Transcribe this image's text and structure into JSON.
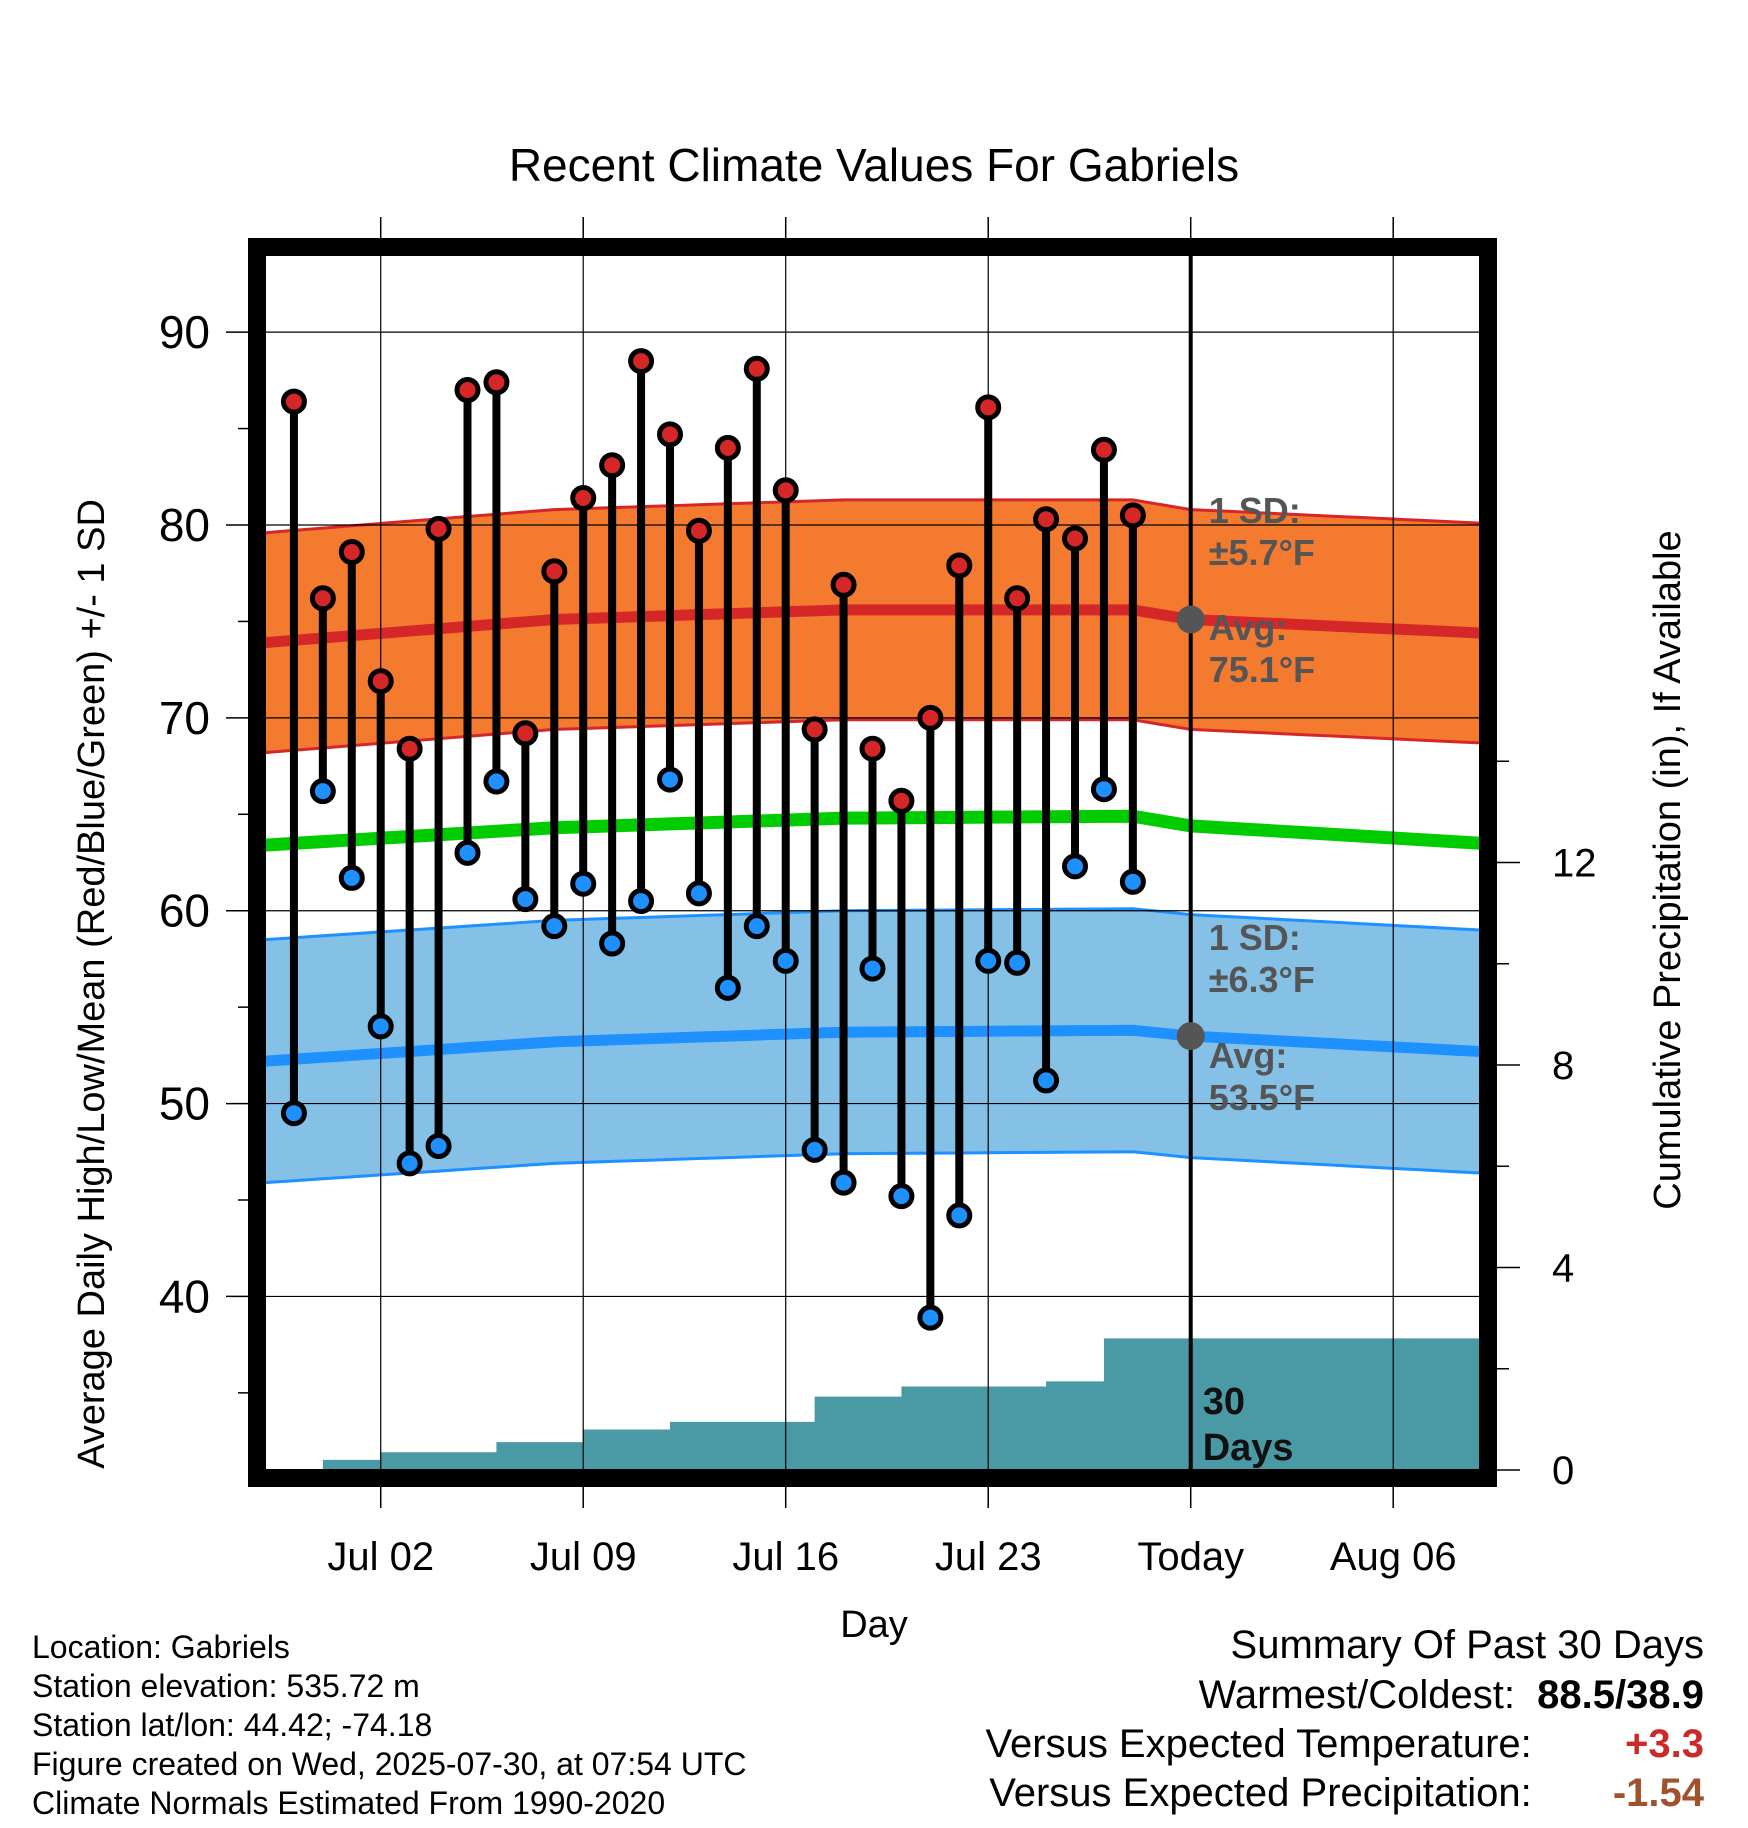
{
  "chart_data": {
    "type": "line",
    "title": "Recent Climate Values For Gabriels",
    "xlabel": "Day",
    "ylabel": "Average Daily High/Low/Mean (Red/Blue/Green) +/- 1 SD",
    "y2label": "Cumulative Precipitation (in), If Available",
    "ylim": [
      31,
      94
    ],
    "y2lim": [
      0,
      24
    ],
    "x_tick_labels": [
      "Jul 02",
      "Jul 09",
      "Jul 16",
      "Jul 23",
      "Today",
      "Aug 06"
    ],
    "x_tick_dates": [
      "2025-07-02",
      "2025-07-09",
      "2025-07-16",
      "2025-07-23",
      "2025-07-30",
      "2025-08-06"
    ],
    "x_range": [
      "2025-06-28",
      "2025-08-09"
    ],
    "y_ticks": [
      40,
      50,
      60,
      70,
      80,
      90
    ],
    "y2_ticks": [
      0,
      4,
      8,
      12
    ],
    "grid": true,
    "days": [
      "2025-06-29",
      "2025-06-30",
      "2025-07-01",
      "2025-07-02",
      "2025-07-03",
      "2025-07-04",
      "2025-07-05",
      "2025-07-06",
      "2025-07-07",
      "2025-07-08",
      "2025-07-09",
      "2025-07-10",
      "2025-07-11",
      "2025-07-12",
      "2025-07-13",
      "2025-07-14",
      "2025-07-15",
      "2025-07-16",
      "2025-07-17",
      "2025-07-18",
      "2025-07-19",
      "2025-07-20",
      "2025-07-21",
      "2025-07-22",
      "2025-07-23",
      "2025-07-24",
      "2025-07-25",
      "2025-07-26",
      "2025-07-27",
      "2025-07-28",
      "2025-07-29"
    ],
    "series": [
      {
        "name": "High",
        "color": "#d62728",
        "values": [
          86.4,
          76.2,
          78.6,
          71.9,
          68.4,
          79.8,
          87.0,
          87.4,
          69.2,
          77.6,
          81.4,
          83.1,
          88.5,
          84.7,
          79.7,
          84.0,
          88.1,
          81.8,
          69.4,
          76.9,
          68.4,
          65.7,
          70.0,
          77.9,
          86.1,
          76.2,
          80.3,
          79.3,
          83.9,
          80.5,
          null
        ]
      },
      {
        "name": "Low",
        "color": "#1e90ff",
        "values": [
          49.5,
          66.2,
          61.7,
          54.0,
          46.9,
          47.8,
          63.0,
          66.7,
          60.6,
          59.2,
          61.4,
          58.3,
          60.5,
          66.8,
          60.9,
          56.0,
          59.2,
          57.4,
          47.6,
          45.9,
          57.0,
          45.2,
          38.9,
          44.2,
          57.4,
          57.3,
          51.2,
          62.3,
          66.3,
          61.5,
          null
        ]
      }
    ],
    "normals": {
      "high_avg": {
        "values": [
          73.9,
          75.1,
          75.6,
          75.6,
          75.1,
          74.4
        ],
        "label": "Avg:\n75.1°F"
      },
      "high_sd": {
        "value": 5.7,
        "label": "1 SD:\n±5.7°F"
      },
      "mean_avg": {
        "values": [
          63.4,
          64.3,
          64.8,
          64.9,
          64.4,
          63.5
        ]
      },
      "low_avg": {
        "values": [
          52.2,
          53.2,
          53.7,
          53.8,
          53.5,
          52.7
        ],
        "label": "Avg:\n53.5°F"
      },
      "low_sd": {
        "value": 6.3,
        "label": "1 SD:\n±6.3°F"
      },
      "normal_dates": [
        "2025-06-28",
        "2025-07-08",
        "2025-07-18",
        "2025-07-28",
        "2025-07-30",
        "2025-08-09"
      ]
    },
    "precipitation": {
      "color": "#4a9aa5",
      "steps": [
        [
          "2025-06-29",
          0.0
        ],
        [
          "2025-06-30",
          0.2
        ],
        [
          "2025-07-02",
          0.35
        ],
        [
          "2025-07-06",
          0.55
        ],
        [
          "2025-07-09",
          0.8
        ],
        [
          "2025-07-12",
          0.95
        ],
        [
          "2025-07-17",
          1.45
        ],
        [
          "2025-07-20",
          1.65
        ],
        [
          "2025-07-25",
          1.75
        ],
        [
          "2025-07-27",
          2.6
        ],
        [
          "2025-08-09",
          2.6
        ]
      ]
    },
    "today_marker": {
      "label": "30\nDays",
      "date": "2025-07-30"
    }
  },
  "footer": {
    "location": "Location: Gabriels",
    "elevation": "Station elevation: 535.72 m",
    "latlon": "Station lat/lon: 44.42; -74.18",
    "created": "Figure created on Wed, 2025-07-30, at 07:54 UTC",
    "normals": "Climate Normals Estimated From 1990-2020"
  },
  "summary": {
    "title": "Summary Of Past 30 Days",
    "warm_cold_label": "Warmest/Coldest:",
    "warm_cold_value": "88.5/38.9",
    "temp_label": "Versus Expected Temperature:",
    "temp_value": "+3.3",
    "temp_color": "#cc2a2a",
    "precip_label": "Versus Expected Precipitation:",
    "precip_value": "-1.54",
    "precip_color": "#a0522d"
  }
}
